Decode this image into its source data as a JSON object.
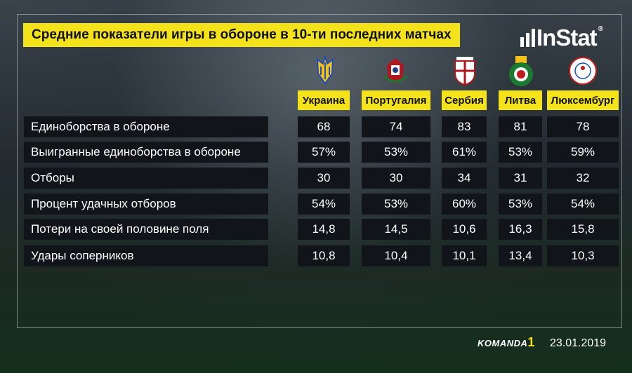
{
  "title": "Средние показатели игры в обороне в 10-ти последних матчах",
  "brand_logo": "InStat",
  "colors": {
    "accent": "#f4e21a",
    "cell_bg": "#11151a"
  },
  "teams": [
    {
      "name": "Украина",
      "crest": "ukraine-crest-icon"
    },
    {
      "name": "Португалия",
      "crest": "portugal-crest-icon"
    },
    {
      "name": "Сербия",
      "crest": "serbia-crest-icon"
    },
    {
      "name": "Литва",
      "crest": "lithuania-crest-icon"
    },
    {
      "name": "Люксембург",
      "crest": "luxembourg-crest-icon"
    }
  ],
  "rows": [
    {
      "label": "Единоборства в обороне",
      "values": [
        "68",
        "74",
        "83",
        "81",
        "78"
      ]
    },
    {
      "label": "Выигранные единоборства в обороне",
      "values": [
        "57%",
        "53%",
        "61%",
        "53%",
        "59%"
      ]
    },
    {
      "label": "Отборы",
      "values": [
        "30",
        "30",
        "34",
        "31",
        "32"
      ]
    },
    {
      "label": "Процент удачных отборов",
      "values": [
        "54%",
        "53%",
        "60%",
        "53%",
        "54%"
      ]
    },
    {
      "label": "Потери на своей половине поля",
      "values": [
        "14,8",
        "14,5",
        "10,6",
        "16,3",
        "15,8"
      ]
    },
    {
      "label": "Удары соперников",
      "values": [
        "10,8",
        "10,4",
        "10,1",
        "13,4",
        "10,3"
      ]
    }
  ],
  "footer": {
    "brand": "KOMANDA",
    "brand_number": "1",
    "date": "23.01.2019"
  }
}
